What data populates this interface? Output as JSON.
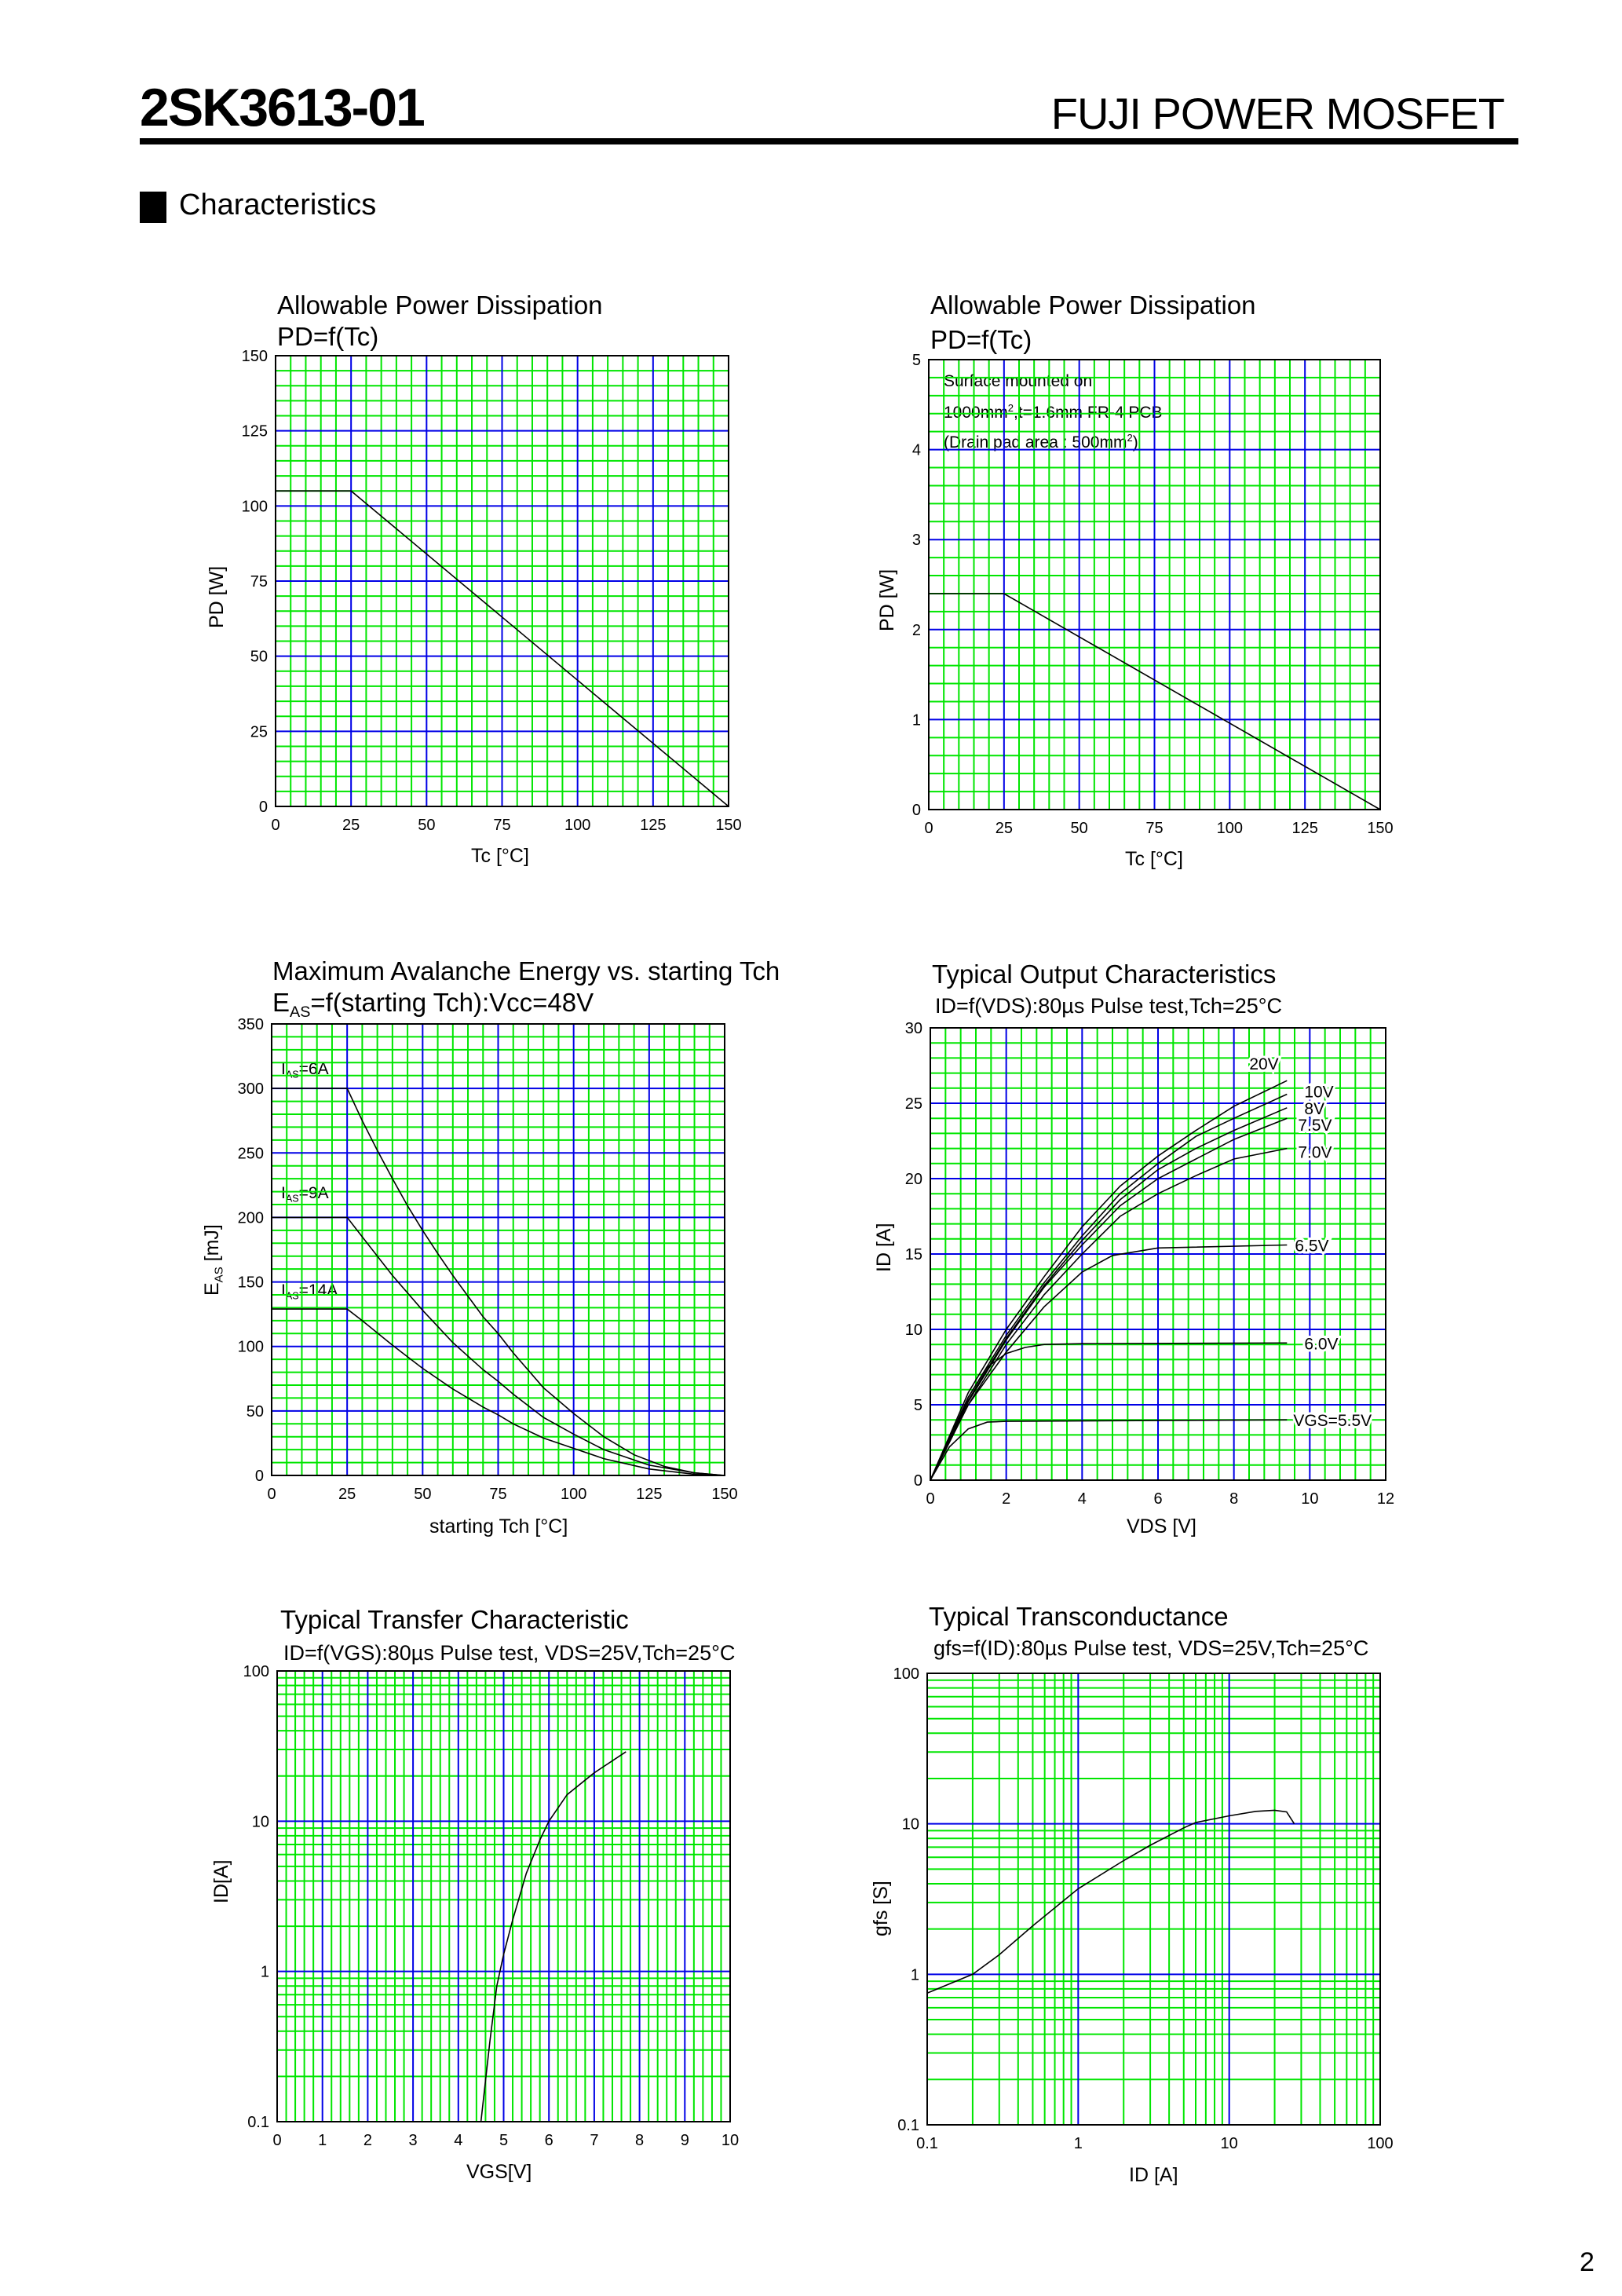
{
  "header": {
    "part_number": "2SK3613-01",
    "brand": "FUJI POWER MOSFET"
  },
  "section": {
    "title": "Characteristics"
  },
  "page_number": "2",
  "colors": {
    "minor_grid": "#00e600",
    "major_grid": "#0000e6",
    "curve": "#000000"
  },
  "chart_data": [
    {
      "type": "line",
      "title": "Allowable Power Dissipation",
      "subtitle": "PD=f(Tc)",
      "xlabel": "Tc [°C]",
      "ylabel": "PD [W]",
      "xlim": [
        0,
        150
      ],
      "ylim": [
        0,
        150
      ],
      "xlog": false,
      "ylog": false,
      "x_major": 25,
      "x_minor": 5,
      "y_major": 25,
      "y_minor": 5,
      "xticks": [
        "0",
        "25",
        "50",
        "75",
        "100",
        "125",
        "150"
      ],
      "yticks": [
        "0",
        "25",
        "50",
        "75",
        "100",
        "125",
        "150"
      ],
      "series": [
        {
          "name": "PD",
          "points": [
            [
              0,
              105
            ],
            [
              25,
              105
            ],
            [
              150,
              0
            ]
          ]
        }
      ]
    },
    {
      "type": "line",
      "title": "Allowable Power Dissipation",
      "subtitle": "PD=f(Tc)",
      "xlabel": "Tc [°C]",
      "ylabel": "PD [W]",
      "xlim": [
        0,
        150
      ],
      "ylim": [
        0,
        5
      ],
      "xlog": false,
      "ylog": false,
      "x_major": 25,
      "x_minor": 5,
      "y_major": 1,
      "y_minor": 0.2,
      "xticks": [
        "0",
        "25",
        "50",
        "75",
        "100",
        "125",
        "150"
      ],
      "yticks": [
        "0",
        "1",
        "2",
        "3",
        "4",
        "5"
      ],
      "notes": [
        "Surface mounted on",
        "1000mm",
        "2",
        ",t=1.6mm FR-4 PCB",
        "(Drain pad area : 500mm",
        "2",
        ")"
      ],
      "series": [
        {
          "name": "PD",
          "points": [
            [
              0,
              2.4
            ],
            [
              25,
              2.4
            ],
            [
              150,
              0
            ]
          ]
        }
      ]
    },
    {
      "type": "line",
      "title": "Maximum Avalanche Energy vs. starting Tch",
      "subtitle_main": "E",
      "subtitle_sub": "AS",
      "subtitle_rest": "=f(starting Tch):Vcc=48V",
      "xlabel": "starting Tch [°C]",
      "ylabel_main": "E",
      "ylabel_sub": "AS",
      "ylabel_rest": " [mJ]",
      "xlim": [
        0,
        150
      ],
      "ylim": [
        0,
        350
      ],
      "xlog": false,
      "ylog": false,
      "x_major": 25,
      "x_minor": 5,
      "y_major": 50,
      "y_minor": 10,
      "xticks": [
        "0",
        "25",
        "50",
        "75",
        "100",
        "125",
        "150"
      ],
      "yticks": [
        "0",
        "50",
        "100",
        "150",
        "200",
        "250",
        "300",
        "350"
      ],
      "series": [
        {
          "name": "IAS=6A",
          "label_main": "I",
          "label_sub": "AS",
          "label_rest": "=6A",
          "points": [
            [
              0,
              300
            ],
            [
              25,
              300
            ],
            [
              30,
              275
            ],
            [
              35,
              252
            ],
            [
              40,
              230
            ],
            [
              45,
              209
            ],
            [
              50,
              190
            ],
            [
              55,
              172
            ],
            [
              60,
              155
            ],
            [
              65,
              139
            ],
            [
              70,
              123
            ],
            [
              75,
              110
            ],
            [
              80,
              95
            ],
            [
              90,
              68
            ],
            [
              100,
              48
            ],
            [
              110,
              30
            ],
            [
              120,
              16
            ],
            [
              130,
              7
            ],
            [
              140,
              2
            ],
            [
              150,
              0
            ]
          ]
        },
        {
          "name": "IAS=9A",
          "label_main": "I",
          "label_sub": "AS",
          "label_rest": "=9A",
          "points": [
            [
              0,
              200
            ],
            [
              25,
              200
            ],
            [
              30,
              185
            ],
            [
              40,
              155
            ],
            [
              50,
              128
            ],
            [
              60,
              103
            ],
            [
              70,
              82
            ],
            [
              75,
              73
            ],
            [
              80,
              63
            ],
            [
              90,
              45
            ],
            [
              100,
              32
            ],
            [
              110,
              20
            ],
            [
              125,
              8
            ],
            [
              140,
              2
            ],
            [
              150,
              0
            ]
          ]
        },
        {
          "name": "IAS=14A",
          "label_main": "I",
          "label_sub": "AS",
          "label_rest": "=14A",
          "points": [
            [
              0,
              129
            ],
            [
              25,
              129
            ],
            [
              30,
              120
            ],
            [
              40,
              101
            ],
            [
              50,
              83
            ],
            [
              60,
              67
            ],
            [
              70,
              53
            ],
            [
              75,
              47
            ],
            [
              80,
              40
            ],
            [
              90,
              29
            ],
            [
              100,
              21
            ],
            [
              110,
              13
            ],
            [
              125,
              5
            ],
            [
              140,
              1
            ],
            [
              150,
              0
            ]
          ]
        }
      ]
    },
    {
      "type": "line",
      "title": "Typical Output Characteristics",
      "subtitle": "ID=f(VDS):80µs Pulse test,Tch=25°C",
      "xlabel": "VDS [V]",
      "ylabel": "ID [A]",
      "xlim": [
        0,
        12
      ],
      "ylim": [
        0,
        30
      ],
      "xlog": false,
      "ylog": false,
      "x_major": 2,
      "x_minor": 0.4,
      "y_major": 5,
      "y_minor": 1,
      "xticks": [
        "0",
        "2",
        "4",
        "6",
        "8",
        "10",
        "12"
      ],
      "yticks": [
        "0",
        "5",
        "10",
        "15",
        "20",
        "25",
        "30"
      ],
      "series": [
        {
          "name": "20V",
          "points": [
            [
              0,
              0
            ],
            [
              1,
              5.8
            ],
            [
              2,
              10
            ],
            [
              3,
              13.5
            ],
            [
              4,
              16.8
            ],
            [
              5,
              19.5
            ],
            [
              6,
              21.5
            ],
            [
              7,
              23.2
            ],
            [
              8,
              24.8
            ],
            [
              9.4,
              26.5
            ]
          ]
        },
        {
          "name": "10V",
          "points": [
            [
              0,
              0
            ],
            [
              1,
              5.5
            ],
            [
              2,
              9.6
            ],
            [
              3,
              13.1
            ],
            [
              4,
              16.2
            ],
            [
              5,
              19
            ],
            [
              6,
              21
            ],
            [
              7,
              22.8
            ],
            [
              8,
              24
            ],
            [
              9.4,
              25.6
            ]
          ]
        },
        {
          "name": "8V",
          "points": [
            [
              0,
              0
            ],
            [
              1,
              5.3
            ],
            [
              2,
              9.4
            ],
            [
              3,
              12.9
            ],
            [
              4,
              15.9
            ],
            [
              5,
              18.6
            ],
            [
              6,
              20.6
            ],
            [
              7,
              22
            ],
            [
              8,
              23.2
            ],
            [
              9.4,
              24.7
            ]
          ]
        },
        {
          "name": "7.5V",
          "points": [
            [
              0,
              0
            ],
            [
              1,
              5.2
            ],
            [
              2,
              9.3
            ],
            [
              3,
              12.8
            ],
            [
              4,
              15.6
            ],
            [
              5,
              18.2
            ],
            [
              6,
              20
            ],
            [
              7,
              21.3
            ],
            [
              8,
              22.6
            ],
            [
              9.4,
              24
            ]
          ]
        },
        {
          "name": "7.0V",
          "points": [
            [
              0,
              0
            ],
            [
              1,
              5
            ],
            [
              2,
              9
            ],
            [
              3,
              12.3
            ],
            [
              4,
              15
            ],
            [
              5,
              17.5
            ],
            [
              6,
              19
            ],
            [
              7,
              20.2
            ],
            [
              8,
              21.3
            ],
            [
              9.4,
              22
            ]
          ]
        },
        {
          "name": "6.5V",
          "points": [
            [
              0,
              0
            ],
            [
              1,
              5
            ],
            [
              2,
              8.5
            ],
            [
              3,
              11.5
            ],
            [
              4,
              13.8
            ],
            [
              4.8,
              14.9
            ],
            [
              6,
              15.4
            ],
            [
              9.4,
              15.6
            ]
          ]
        },
        {
          "name": "6.0V",
          "points": [
            [
              0,
              0
            ],
            [
              1,
              5.5
            ],
            [
              1.5,
              7.5
            ],
            [
              2,
              8.4
            ],
            [
              2.5,
              8.8
            ],
            [
              3,
              9
            ],
            [
              4,
              9.05
            ],
            [
              9.4,
              9.1
            ]
          ]
        },
        {
          "name": "VGS=5.5V",
          "points": [
            [
              0,
              0
            ],
            [
              0.5,
              2.2
            ],
            [
              1,
              3.4
            ],
            [
              1.5,
              3.85
            ],
            [
              2,
              3.9
            ],
            [
              9.4,
              4.0
            ]
          ]
        }
      ]
    },
    {
      "type": "line",
      "title": "Typical Transfer Characteristic",
      "subtitle": "ID=f(VGS):80µs Pulse test, VDS=25V,Tch=25°C",
      "xlabel": "VGS[V]",
      "ylabel": "ID[A]",
      "xlim": [
        0,
        10
      ],
      "ylim": [
        0.1,
        100
      ],
      "xlog": false,
      "ylog": true,
      "x_major": 1,
      "x_minor": 0.2,
      "xticks": [
        "0",
        "1",
        "2",
        "3",
        "4",
        "5",
        "6",
        "7",
        "8",
        "9",
        "10"
      ],
      "yticks": [
        "0.1",
        "1",
        "10",
        "100"
      ],
      "series": [
        {
          "name": "ID",
          "points": [
            [
              4.5,
              0.1
            ],
            [
              4.7,
              0.35
            ],
            [
              4.85,
              0.8
            ],
            [
              5,
              1.3
            ],
            [
              5.2,
              2.2
            ],
            [
              5.5,
              4.5
            ],
            [
              5.8,
              7.5
            ],
            [
              6,
              10
            ],
            [
              6.4,
              15
            ],
            [
              7,
              21
            ],
            [
              7.7,
              29
            ]
          ]
        }
      ]
    },
    {
      "type": "line",
      "title": "Typical Transconductance",
      "subtitle": "gfs=f(ID):80µs Pulse test, VDS=25V,Tch=25°C",
      "xlabel": "ID [A]",
      "ylabel": "gfs [S]",
      "xlim": [
        0.1,
        100
      ],
      "ylim": [
        0.1,
        100
      ],
      "xlog": true,
      "ylog": true,
      "xticks": [
        "0.1",
        "1",
        "10",
        "100"
      ],
      "yticks": [
        "0.1",
        "1",
        "10",
        "100"
      ],
      "series": [
        {
          "name": "gfs",
          "points": [
            [
              0.1,
              0.75
            ],
            [
              0.2,
              1.0
            ],
            [
              0.3,
              1.35
            ],
            [
              0.5,
              2.1
            ],
            [
              1,
              3.7
            ],
            [
              2,
              5.7
            ],
            [
              3,
              7.2
            ],
            [
              5,
              9.4
            ],
            [
              6,
              10.2
            ],
            [
              10,
              11.3
            ],
            [
              15,
              12.1
            ],
            [
              20,
              12.3
            ],
            [
              24,
              12.0
            ],
            [
              27,
              10
            ]
          ]
        }
      ]
    }
  ]
}
